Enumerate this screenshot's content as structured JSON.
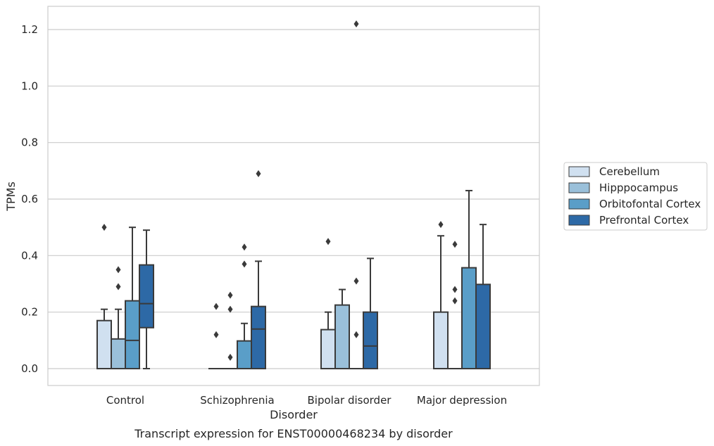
{
  "chart_data": {
    "type": "box",
    "title": "",
    "caption": "Transcript expression for ENST00000468234 by disorder",
    "xlabel": "Disorder",
    "ylabel": "TPMs",
    "ylim": [
      -0.06,
      1.28
    ],
    "yticks": [
      0.0,
      0.2,
      0.4,
      0.6,
      0.8,
      1.0,
      1.2
    ],
    "ytick_labels": [
      "0.0",
      "0.2",
      "0.4",
      "0.6",
      "0.8",
      "1.0",
      "1.2"
    ],
    "grid": "horizontal",
    "legend_position": "right",
    "categories": [
      "Control",
      "Schizophrenia",
      "Bipolar disorder",
      "Major depression"
    ],
    "series": [
      {
        "name": "Cerebellum",
        "color": "#d0e0f0",
        "boxes": [
          {
            "q1": 0,
            "median": 0,
            "q3": 0.17,
            "whisker_low": 0,
            "whisker_high": 0.21,
            "outliers": [
              0.5
            ]
          },
          {
            "q1": 0,
            "median": 0,
            "q3": 0,
            "whisker_low": 0,
            "whisker_high": 0,
            "outliers": [
              0.12,
              0.22
            ]
          },
          {
            "q1": 0,
            "median": 0,
            "q3": 0.138,
            "whisker_low": 0,
            "whisker_high": 0.2,
            "outliers": [
              0.45
            ]
          },
          {
            "q1": 0,
            "median": 0,
            "q3": 0.2,
            "whisker_low": 0,
            "whisker_high": 0.47,
            "outliers": [
              0.51
            ]
          }
        ]
      },
      {
        "name": "Hipppocampus",
        "color": "#9ac0da",
        "boxes": [
          {
            "q1": 0,
            "median": 0,
            "q3": 0.105,
            "whisker_low": 0,
            "whisker_high": 0.21,
            "outliers": [
              0.29,
              0.35
            ]
          },
          {
            "q1": 0,
            "median": 0,
            "q3": 0,
            "whisker_low": 0,
            "whisker_high": 0,
            "outliers": [
              0.04,
              0.21,
              0.26
            ]
          },
          {
            "q1": 0,
            "median": 0,
            "q3": 0.225,
            "whisker_low": 0,
            "whisker_high": 0.28,
            "outliers": []
          },
          {
            "q1": 0,
            "median": 0,
            "q3": 0,
            "whisker_low": 0,
            "whisker_high": 0,
            "outliers": [
              0.24,
              0.28,
              0.44
            ]
          }
        ]
      },
      {
        "name": "Orbitofontal Cortex",
        "color": "#5a9ec8",
        "boxes": [
          {
            "q1": 0,
            "median": 0.1,
            "q3": 0.24,
            "whisker_low": 0,
            "whisker_high": 0.5,
            "outliers": []
          },
          {
            "q1": 0,
            "median": 0,
            "q3": 0.098,
            "whisker_low": 0,
            "whisker_high": 0.16,
            "outliers": [
              0.37,
              0.43
            ]
          },
          {
            "q1": 0,
            "median": 0,
            "q3": 0,
            "whisker_low": 0,
            "whisker_high": 0,
            "outliers": [
              0.12,
              0.31,
              1.22
            ]
          },
          {
            "q1": 0,
            "median": 0,
            "q3": 0.357,
            "whisker_low": 0,
            "whisker_high": 0.63,
            "outliers": []
          }
        ]
      },
      {
        "name": "Prefrontal Cortex",
        "color": "#2d69a6",
        "boxes": [
          {
            "q1": 0.145,
            "median": 0.23,
            "q3": 0.367,
            "whisker_low": 0,
            "whisker_high": 0.49,
            "outliers": []
          },
          {
            "q1": 0,
            "median": 0.14,
            "q3": 0.22,
            "whisker_low": 0,
            "whisker_high": 0.38,
            "outliers": [
              0.69
            ]
          },
          {
            "q1": 0,
            "median": 0.08,
            "q3": 0.2,
            "whisker_low": 0,
            "whisker_high": 0.39,
            "outliers": []
          },
          {
            "q1": 0,
            "median": 0,
            "q3": 0.298,
            "whisker_low": 0,
            "whisker_high": 0.51,
            "outliers": []
          }
        ]
      }
    ]
  }
}
